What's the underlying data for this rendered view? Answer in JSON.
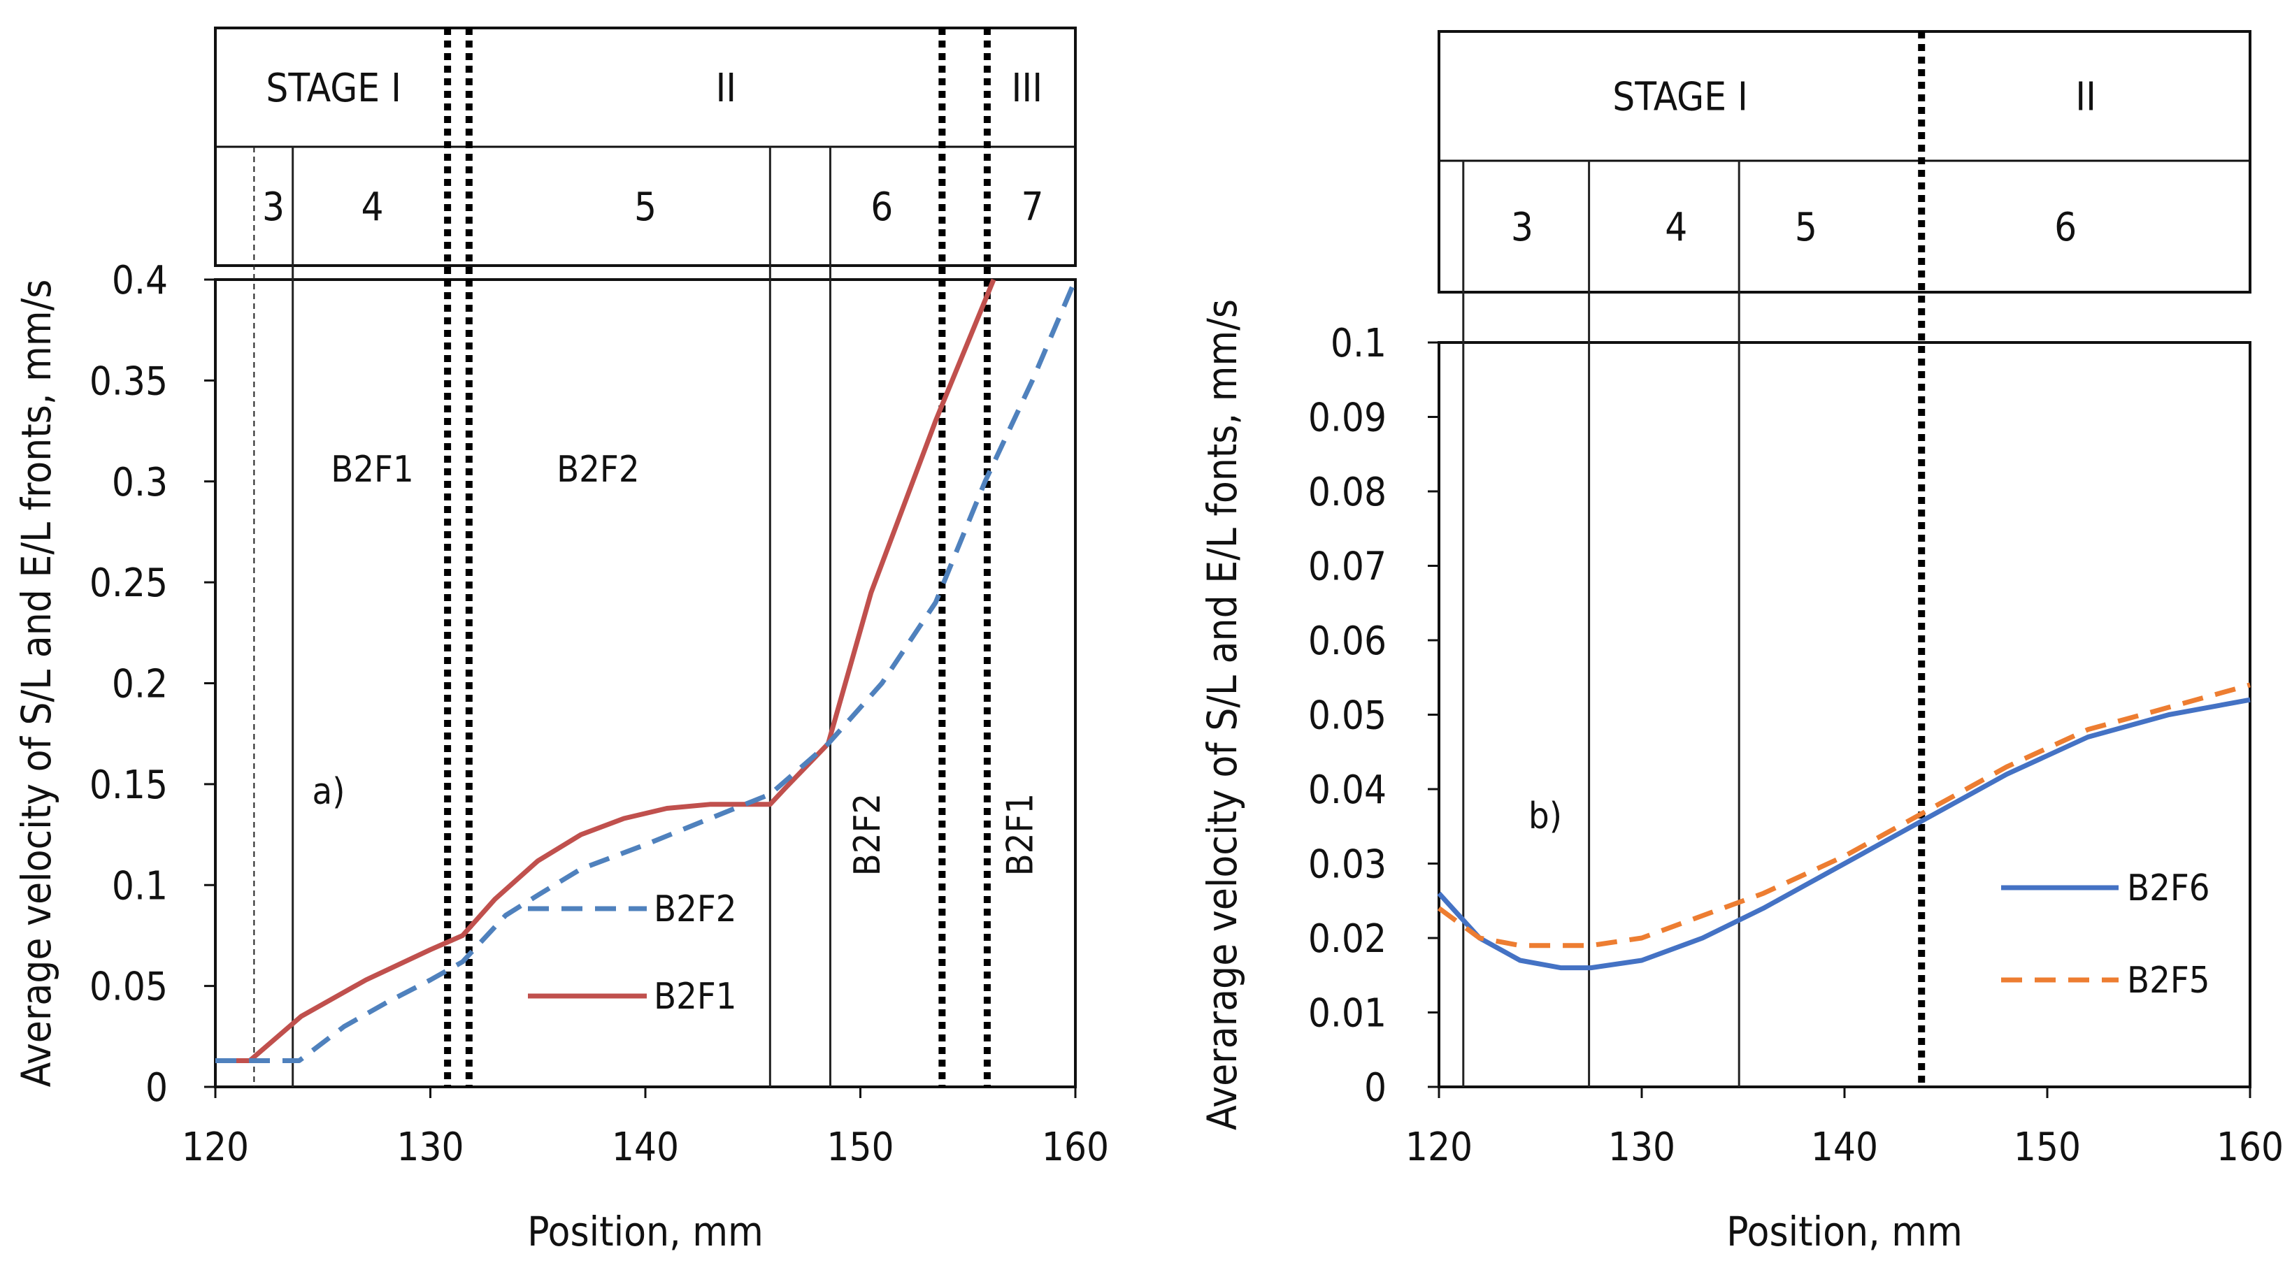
{
  "chart_data": [
    {
      "id": "a",
      "type": "line",
      "panel_label": "a)",
      "xlabel": "Position, mm",
      "ylabel": "Average velocity of S/L and E/L fronts, mm/s",
      "xlim": [
        120,
        160
      ],
      "ylim": [
        0,
        0.4
      ],
      "x_ticks": [
        "120",
        "130",
        "140",
        "150",
        "160"
      ],
      "y_ticks": [
        "0",
        "0.05",
        "0.1",
        "0.15",
        "0.2",
        "0.25",
        "0.3",
        "0.35",
        "0.4"
      ],
      "stages": [
        {
          "label": "STAGE I",
          "from": 120,
          "to": 131
        },
        {
          "label": "II",
          "from": 132,
          "to": 155.5
        },
        {
          "label": "III",
          "from": 155.5,
          "to": 160
        }
      ],
      "zones": [
        {
          "label": "3",
          "x": 122.7
        },
        {
          "label": "4",
          "x": 127.3
        },
        {
          "label": "5",
          "x": 140
        },
        {
          "label": "6",
          "x": 151
        },
        {
          "label": "7",
          "x": 158
        }
      ],
      "solid_dividers": [
        123.6,
        145.8,
        148.6
      ],
      "thin_dashed_dividers": [
        121.8
      ],
      "dotted_dividers": [
        130.8,
        131.8,
        153.8,
        155.9
      ],
      "region_labels": [
        {
          "text": "B2F1",
          "x": 127.3,
          "y": 0.3,
          "rotated": false
        },
        {
          "text": "B2F2",
          "x": 137.8,
          "y": 0.3,
          "rotated": false
        },
        {
          "text": "B2F2",
          "x": 150.9,
          "y": 0.125,
          "rotated": true
        },
        {
          "text": "B2F1",
          "x": 158,
          "y": 0.125,
          "rotated": true
        }
      ],
      "series": [
        {
          "name": "B2F1",
          "color": "#c0504d",
          "style": "solid",
          "x": [
            120,
            121.6,
            124,
            127,
            130,
            131.5,
            133,
            135,
            137,
            139,
            141,
            143,
            145.8,
            146.5,
            148.5,
            150.5,
            153.5,
            156.2
          ],
          "y": [
            0.013,
            0.013,
            0.035,
            0.053,
            0.068,
            0.075,
            0.093,
            0.112,
            0.125,
            0.133,
            0.138,
            0.14,
            0.14,
            0.148,
            0.17,
            0.245,
            0.33,
            0.4
          ]
        },
        {
          "name": "B2F2",
          "color": "#4f81bd",
          "style": "dashed",
          "x": [
            120,
            121.6,
            123.9,
            126,
            128,
            130,
            131.5,
            133.5,
            135,
            137,
            140,
            143,
            145.8,
            148.5,
            151,
            153.5,
            155.8,
            158,
            160
          ],
          "y": [
            0.013,
            0.013,
            0.013,
            0.03,
            0.042,
            0.053,
            0.062,
            0.085,
            0.095,
            0.108,
            0.12,
            0.133,
            0.145,
            0.17,
            0.2,
            0.24,
            0.3,
            0.35,
            0.4
          ]
        }
      ],
      "legend": [
        {
          "name": "B2F2",
          "style": "dashed",
          "color": "#4f81bd"
        },
        {
          "name": "B2F1",
          "style": "solid",
          "color": "#c0504d"
        }
      ]
    },
    {
      "id": "b",
      "type": "line",
      "panel_label": "b)",
      "xlabel": "Position, mm",
      "ylabel": "Averarage velocity of S/L and E/L fonts, mm/s",
      "xlim": [
        120,
        160
      ],
      "ylim": [
        0,
        0.1
      ],
      "x_ticks": [
        "120",
        "130",
        "140",
        "150",
        "160"
      ],
      "y_ticks": [
        "0",
        "0.01",
        "0.02",
        "0.03",
        "0.04",
        "0.05",
        "0.06",
        "0.07",
        "0.08",
        "0.09",
        "0.1"
      ],
      "stages": [
        {
          "label": "STAGE I",
          "from": 120,
          "to": 143.8
        },
        {
          "label": "II",
          "from": 143.8,
          "to": 160
        }
      ],
      "zones": [
        {
          "label": "3",
          "x": 124.1
        },
        {
          "label": "4",
          "x": 131.7
        },
        {
          "label": "5",
          "x": 138.1
        },
        {
          "label": "6",
          "x": 150.9
        }
      ],
      "solid_dividers": [
        121.2,
        127.4,
        134.8
      ],
      "dotted_dividers": [
        143.8
      ],
      "series": [
        {
          "name": "B2F6",
          "color": "#4472c4",
          "style": "solid",
          "x": [
            120,
            122,
            124,
            126,
            127.5,
            130,
            133,
            136,
            140,
            144,
            148,
            152,
            156,
            160
          ],
          "y": [
            0.026,
            0.02,
            0.017,
            0.016,
            0.016,
            0.017,
            0.02,
            0.024,
            0.03,
            0.036,
            0.042,
            0.047,
            0.05,
            0.052
          ]
        },
        {
          "name": "B2F5",
          "color": "#ed7d31",
          "style": "dashed",
          "x": [
            120,
            122,
            124,
            126,
            127.5,
            130,
            133,
            136,
            140,
            144,
            148,
            152,
            156,
            160
          ],
          "y": [
            0.024,
            0.02,
            0.019,
            0.019,
            0.019,
            0.02,
            0.023,
            0.026,
            0.031,
            0.037,
            0.043,
            0.048,
            0.051,
            0.054
          ]
        }
      ],
      "legend": [
        {
          "name": "B2F6",
          "style": "solid",
          "color": "#4472c4"
        },
        {
          "name": "B2F5",
          "style": "dashed",
          "color": "#ed7d31"
        }
      ]
    }
  ]
}
